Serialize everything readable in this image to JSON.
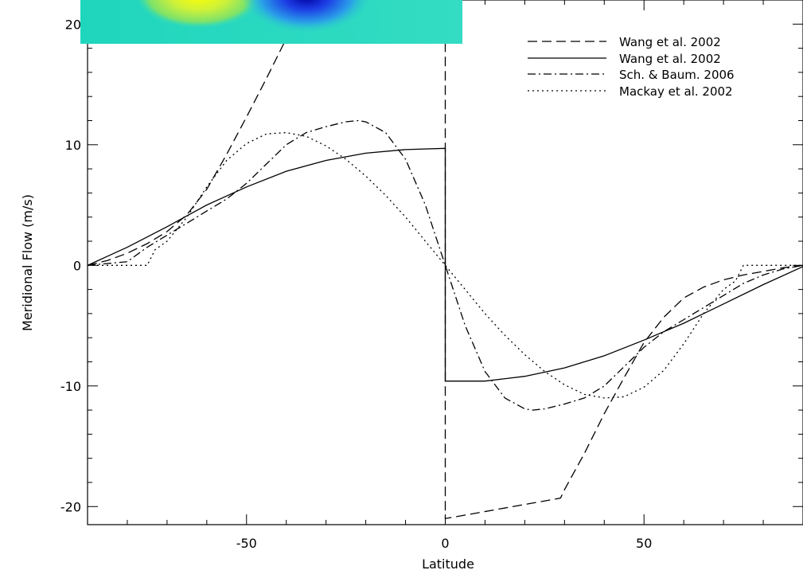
{
  "chart_data": {
    "type": "line",
    "xlabel": "Latitude",
    "ylabel": "Meridional Flow (m/s)",
    "xlim": [
      -90,
      90
    ],
    "ylim": [
      -21.5,
      22
    ],
    "x_ticks": [
      -50,
      0,
      50
    ],
    "x_tick_labels": [
      "-50",
      "0",
      "50"
    ],
    "y_ticks": [
      -20,
      -10,
      0,
      10,
      20
    ],
    "y_tick_labels": [
      "-20",
      "-10",
      "0",
      "10",
      "20"
    ],
    "grid": false,
    "legend_position": "top-right",
    "series": [
      {
        "name": "Wang et al. 2002",
        "line_style": "dashed",
        "x": [
          -90,
          -85,
          -80,
          -75,
          -70,
          -65,
          -60,
          -55,
          -50,
          -45,
          -40,
          -35,
          -30,
          -29,
          -0.01,
          0.01,
          29,
          30,
          35,
          40,
          45,
          50,
          55,
          60,
          65,
          70,
          75,
          80,
          85,
          90
        ],
        "y": [
          0,
          0.4,
          1,
          1.8,
          2.8,
          4.2,
          6.3,
          9.2,
          12.3,
          15.5,
          18.8,
          21,
          22.9,
          23.3,
          23.3,
          -21,
          -19.3,
          -18.6,
          -15.6,
          -12.3,
          -9.3,
          -6.4,
          -4.3,
          -2.7,
          -1.8,
          -1.2,
          -0.8,
          -0.5,
          -0.2,
          0
        ]
      },
      {
        "name": "Wang et al. 2002",
        "line_style": "solid",
        "x": [
          -90,
          -80,
          -70,
          -60,
          -50,
          -40,
          -30,
          -20,
          -10,
          -0.01,
          0.01,
          10,
          20,
          30,
          40,
          50,
          60,
          70,
          80,
          90
        ],
        "y": [
          0,
          1.5,
          3.2,
          5,
          6.5,
          7.8,
          8.7,
          9.3,
          9.6,
          9.7,
          -9.6,
          -9.6,
          -9.2,
          -8.5,
          -7.5,
          -6.2,
          -4.8,
          -3.2,
          -1.6,
          -0.1
        ]
      },
      {
        "name": "Sch. & Baum. 2006",
        "line_style": "dashdot",
        "x": [
          -90,
          -80,
          -75,
          -70,
          -65,
          -60,
          -55,
          -50,
          -45,
          -40,
          -35,
          -30,
          -25,
          -22,
          -20,
          -15,
          -10,
          -5,
          0,
          5,
          10,
          15,
          20,
          22,
          25,
          30,
          35,
          40,
          45,
          50,
          55,
          60,
          65,
          70,
          75,
          80,
          85,
          90
        ],
        "y": [
          0,
          0.3,
          1.5,
          2.5,
          3.5,
          4.5,
          5.5,
          6.8,
          8.4,
          10,
          11,
          11.5,
          11.9,
          12,
          11.9,
          11,
          8.8,
          5,
          0,
          -5,
          -8.8,
          -11,
          -11.9,
          -12,
          -11.9,
          -11.5,
          -11,
          -10,
          -8.4,
          -6.8,
          -5.5,
          -4.5,
          -3.5,
          -2.5,
          -1.5,
          -0.8,
          -0.3,
          0
        ]
      },
      {
        "name": "Mackay et al. 2002",
        "line_style": "dotted",
        "x": [
          -90,
          -83,
          -75,
          -73,
          -70,
          -65,
          -60,
          -55,
          -50,
          -45,
          -40,
          -35,
          -30,
          -25,
          -20,
          -15,
          -10,
          -5,
          0,
          5,
          10,
          15,
          20,
          25,
          30,
          35,
          40,
          45,
          50,
          55,
          60,
          65,
          70,
          73,
          75,
          83,
          90
        ],
        "y": [
          0,
          0,
          0,
          1.3,
          2,
          4,
          6.5,
          8.7,
          10.1,
          10.9,
          11,
          10.7,
          9.9,
          8.8,
          7.4,
          5.8,
          4,
          2,
          0,
          -2,
          -4,
          -5.8,
          -7.4,
          -8.8,
          -9.9,
          -10.7,
          -11,
          -10.9,
          -10.1,
          -8.7,
          -6.5,
          -4,
          -2,
          -1.3,
          0,
          0,
          0
        ]
      }
    ]
  }
}
